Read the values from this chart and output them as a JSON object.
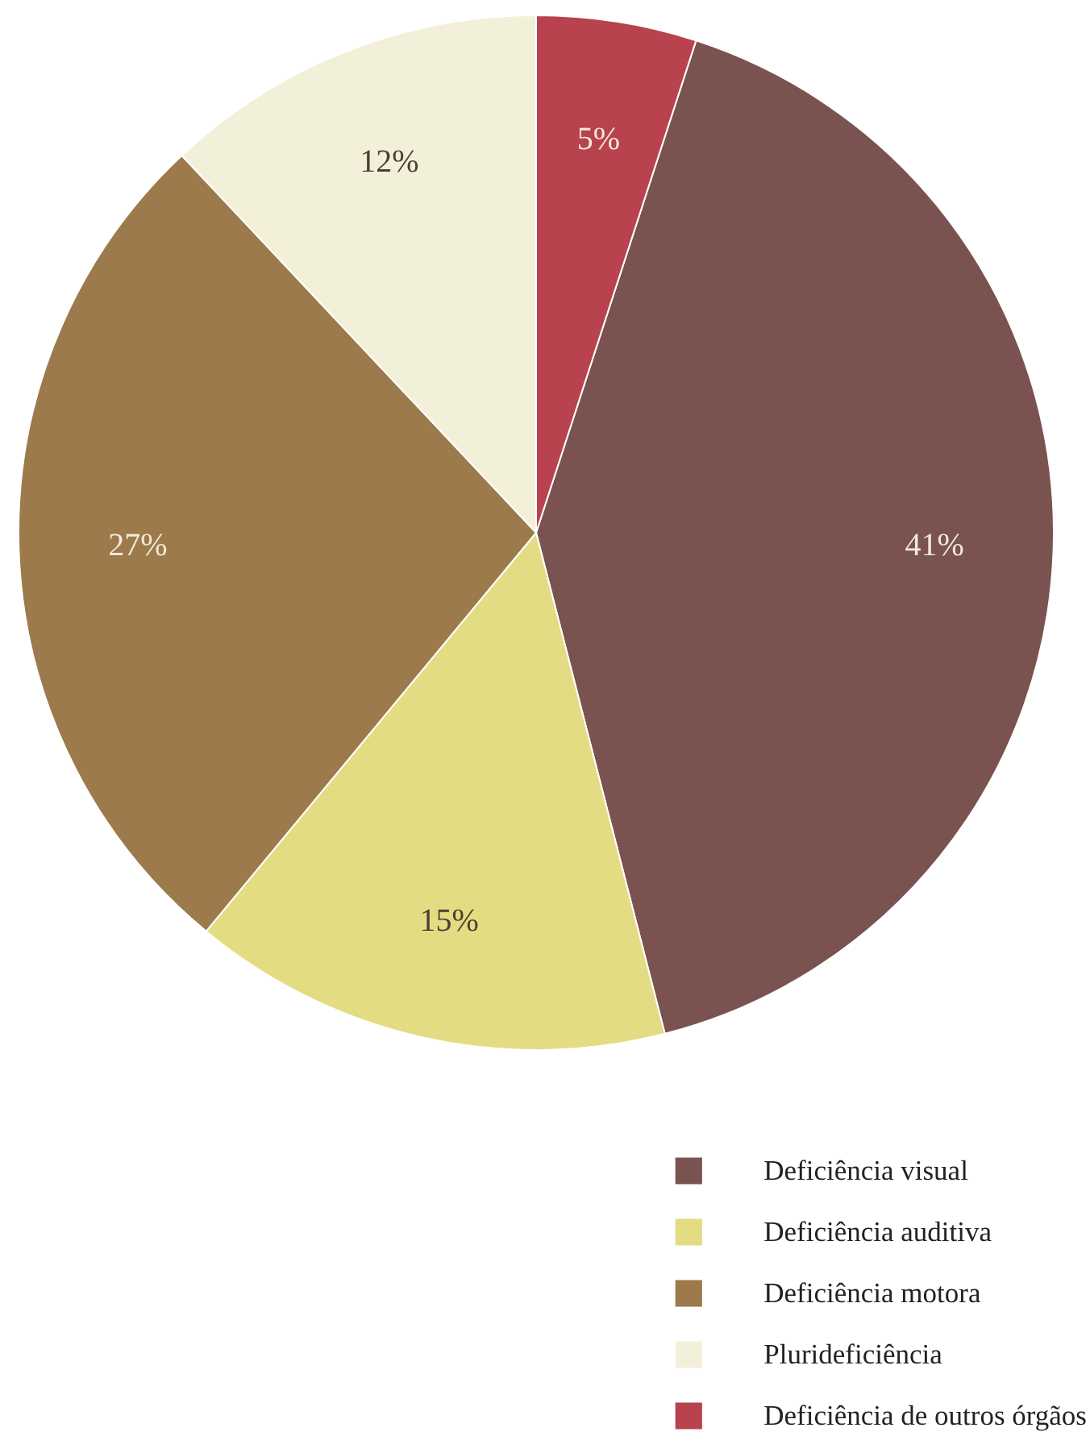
{
  "chart_data": {
    "type": "pie",
    "categories": [
      "Deficiência visual",
      "Deficiência auditiva",
      "Deficiência motora",
      "Plurideficiência",
      "Deficiência de outros órgãos"
    ],
    "values": [
      41,
      15,
      27,
      12,
      5
    ],
    "colors": [
      "#7a5250",
      "#e3dc82",
      "#9c7a4c",
      "#f3f0da",
      "#b8424e"
    ],
    "value_labels": [
      "41%",
      "15%",
      "27%",
      "12%",
      "5%"
    ],
    "legend": "bottom right"
  }
}
